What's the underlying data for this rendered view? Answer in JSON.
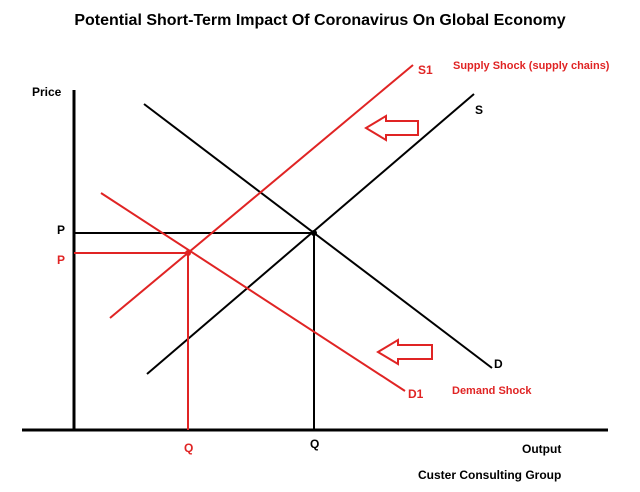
{
  "title": "Potential Short-Term Impact Of Coronavirus On Global Economy",
  "axes": {
    "y_label": "Price",
    "x_label": "Output"
  },
  "curves": {
    "s1_label": "S1",
    "s_label": "S",
    "d_label": "D",
    "d1_label": "D1"
  },
  "equilibrium": {
    "p_original": "P",
    "p_new": "P",
    "q_original": "Q",
    "q_new": "Q"
  },
  "annotations": {
    "supply_shock": "Supply Shock (supply chains)",
    "demand_shock": "Demand Shock"
  },
  "footer": "Custer Consulting Group",
  "colors": {
    "original": "#000000",
    "shock": "#e02424"
  },
  "icons": [
    "left-arrow-icon",
    "left-arrow-icon"
  ]
}
